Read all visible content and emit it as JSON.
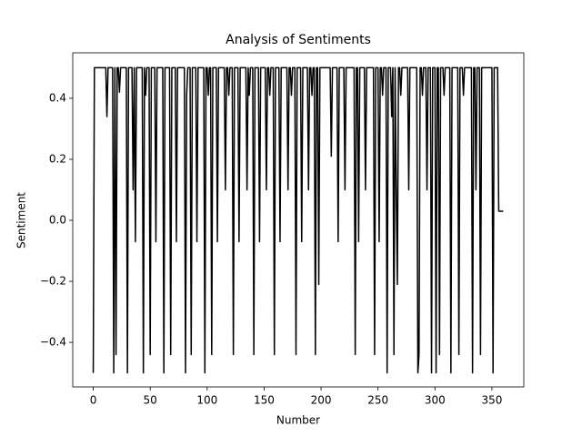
{
  "chart_data": {
    "type": "line",
    "title": "Analysis of Sentiments",
    "x_label": "Number",
    "y_label": "Sentiment",
    "xlim": [
      -18,
      378
    ],
    "ylim": [
      -0.546,
      0.549
    ],
    "xticks": [
      0,
      50,
      100,
      150,
      200,
      250,
      300,
      350
    ],
    "yticks": [
      {
        "value": -0.4,
        "label": "−0.4"
      },
      {
        "value": -0.2,
        "label": "−0.2"
      },
      {
        "value": 0,
        "label": "0.0"
      },
      0.2,
      0.4
    ],
    "grid": false,
    "x": [
      0,
      1,
      2,
      3,
      4,
      5,
      6,
      7,
      8,
      9,
      10,
      11,
      12,
      13,
      14,
      15,
      16,
      17,
      18,
      19,
      20,
      21,
      22,
      23,
      24,
      25,
      26,
      27,
      28,
      29,
      30,
      31,
      32,
      33,
      34,
      35,
      36,
      37,
      38,
      39,
      40,
      41,
      42,
      43,
      44,
      45,
      46,
      47,
      48,
      49,
      50,
      51,
      52,
      53,
      54,
      55,
      56,
      57,
      58,
      59,
      60,
      61,
      62,
      63,
      64,
      65,
      66,
      67,
      68,
      69,
      70,
      71,
      72,
      73,
      74,
      75,
      76,
      77,
      78,
      79,
      80,
      81,
      82,
      83,
      84,
      85,
      86,
      87,
      88,
      89,
      90,
      91,
      92,
      93,
      94,
      95,
      96,
      97,
      98,
      99,
      100,
      101,
      102,
      103,
      104,
      105,
      106,
      107,
      108,
      109,
      110,
      111,
      112,
      113,
      114,
      115,
      116,
      117,
      118,
      119,
      120,
      121,
      122,
      123,
      124,
      125,
      126,
      127,
      128,
      129,
      130,
      131,
      132,
      133,
      134,
      135,
      136,
      137,
      138,
      139,
      140,
      141,
      142,
      143,
      144,
      145,
      146,
      147,
      148,
      149,
      150,
      151,
      152,
      153,
      154,
      155,
      156,
      157,
      158,
      159,
      160,
      161,
      162,
      163,
      164,
      165,
      166,
      167,
      168,
      169,
      170,
      171,
      172,
      173,
      174,
      175,
      176,
      177,
      178,
      179,
      180,
      181,
      182,
      183,
      184,
      185,
      186,
      187,
      188,
      189,
      190,
      191,
      192,
      193,
      194,
      195,
      196,
      197,
      198,
      199,
      200,
      201,
      202,
      203,
      204,
      205,
      206,
      207,
      208,
      209,
      210,
      211,
      212,
      213,
      214,
      215,
      216,
      217,
      218,
      219,
      220,
      221,
      222,
      223,
      224,
      225,
      226,
      227,
      228,
      229,
      230,
      231,
      232,
      233,
      234,
      235,
      236,
      237,
      238,
      239,
      240,
      241,
      242,
      243,
      244,
      245,
      246,
      247,
      248,
      249,
      250,
      251,
      252,
      253,
      254,
      255,
      256,
      257,
      258,
      259,
      260,
      261,
      262,
      263,
      264,
      265,
      266,
      267,
      268,
      269,
      270,
      271,
      272,
      273,
      274,
      275,
      276,
      277,
      278,
      279,
      280,
      281,
      282,
      283,
      284,
      285,
      286,
      287,
      288,
      289,
      290,
      291,
      292,
      293,
      294,
      295,
      296,
      297,
      298,
      299,
      300,
      301,
      302,
      303,
      304,
      305,
      306,
      307,
      308,
      309,
      310,
      311,
      312,
      313,
      314,
      315,
      316,
      317,
      318,
      319,
      320,
      321,
      322,
      323,
      324,
      325,
      326,
      327,
      328,
      329,
      330,
      331,
      332,
      333,
      334,
      335,
      336,
      337,
      338,
      339,
      340,
      341,
      342,
      343,
      344,
      345,
      346,
      347,
      348,
      349,
      350,
      351,
      352,
      353,
      354,
      355,
      356,
      357,
      358,
      359,
      360
    ],
    "series": [
      {
        "color": "#000000",
        "values": [
          -0.5,
          0.5,
          0.5,
          0.5,
          0.5,
          0.5,
          0.5,
          0.5,
          0.5,
          0.5,
          0.5,
          0.5,
          0.34,
          0.5,
          0.5,
          0.5,
          0.5,
          0.5,
          -0.5,
          0.5,
          -0.44,
          0.5,
          0.5,
          0.42,
          0.5,
          0.5,
          0.5,
          0.5,
          0.5,
          0.5,
          -0.5,
          0.5,
          0.5,
          0.5,
          0.5,
          0.1,
          0.5,
          -0.07,
          0.5,
          0.5,
          0.5,
          0.5,
          0.5,
          0.5,
          -0.5,
          0.5,
          0.41,
          0.5,
          0.5,
          0.5,
          -0.44,
          0.5,
          0.5,
          0.5,
          0.5,
          -0.07,
          0.5,
          0.5,
          0.5,
          0.5,
          0.5,
          0.5,
          -0.5,
          0.5,
          0.5,
          0.5,
          0.5,
          0.5,
          -0.44,
          0.5,
          0.5,
          0.5,
          0.5,
          -0.07,
          0.5,
          0.5,
          0.5,
          0.5,
          0.5,
          0.5,
          0.5,
          -0.5,
          0.41,
          0.5,
          0.5,
          0.5,
          -0.44,
          0.5,
          0.5,
          0.5,
          0.5,
          -0.07,
          0.5,
          0.5,
          0.5,
          0.5,
          0.5,
          0.5,
          -0.5,
          0.5,
          0.5,
          0.41,
          0.5,
          0.5,
          -0.44,
          0.5,
          0.5,
          0.5,
          0.5,
          -0.07,
          0.5,
          0.5,
          0.5,
          0.5,
          0.5,
          0.5,
          0.1,
          0.5,
          0.5,
          0.41,
          0.5,
          0.5,
          0.5,
          -0.44,
          0.5,
          0.5,
          0.5,
          0.5,
          -0.07,
          0.5,
          0.5,
          0.5,
          0.5,
          0.5,
          0.5,
          0.1,
          0.5,
          0.41,
          0.5,
          0.5,
          0.5,
          -0.44,
          0.5,
          0.5,
          0.5,
          0.5,
          -0.07,
          0.5,
          0.5,
          0.5,
          0.5,
          0.5,
          0.1,
          0.5,
          0.5,
          0.41,
          0.5,
          0.5,
          0.5,
          -0.44,
          0.5,
          0.5,
          0.5,
          0.5,
          -0.07,
          0.5,
          0.5,
          0.5,
          0.5,
          0.5,
          0.5,
          0.1,
          0.5,
          0.5,
          0.41,
          0.5,
          0.5,
          0.5,
          -0.44,
          0.5,
          0.5,
          0.5,
          0.5,
          -0.07,
          0.5,
          0.5,
          0.5,
          0.5,
          0.5,
          0.1,
          0.5,
          0.5,
          0.41,
          0.5,
          0.5,
          -0.44,
          0.5,
          0.5,
          -0.21,
          0.5,
          0.5,
          0.5,
          0.5,
          0.5,
          0.5,
          0.5,
          0.5,
          0.5,
          0.5,
          0.21,
          0.5,
          0.5,
          0.5,
          0.5,
          0.5,
          -0.07,
          0.5,
          0.5,
          0.5,
          0.5,
          0.5,
          0.1,
          0.5,
          0.5,
          0.5,
          0.5,
          0.5,
          0.5,
          0.5,
          0.5,
          -0.44,
          0.5,
          0.5,
          -0.07,
          0.5,
          0.5,
          0.5,
          0.5,
          0.5,
          0.1,
          0.5,
          0.5,
          0.5,
          0.5,
          0.5,
          0.5,
          0.5,
          -0.44,
          0.5,
          0.5,
          0.5,
          -0.07,
          0.5,
          0.5,
          0.41,
          0.5,
          0.5,
          0.5,
          -0.5,
          0.5,
          0.5,
          0.5,
          0.34,
          0.5,
          -0.44,
          0.5,
          0.1,
          -0.21,
          0.5,
          0.5,
          0.41,
          0.5,
          0.5,
          0.5,
          0.5,
          0.5,
          0.5,
          0.1,
          0.5,
          0.5,
          0.5,
          0.5,
          0.5,
          0.5,
          0.5,
          -0.5,
          -0.44,
          0.5,
          0.5,
          0.41,
          0.5,
          0.5,
          0.5,
          0.1,
          0.5,
          0.5,
          0.5,
          -0.5,
          0.5,
          0.5,
          0.5,
          -0.5,
          0.5,
          0.5,
          -0.44,
          0.5,
          0.5,
          0.5,
          0.41,
          0.5,
          0.5,
          0.5,
          0.5,
          0.5,
          -0.5,
          0.5,
          0.5,
          0.5,
          0.5,
          0.5,
          0.5,
          -0.44,
          0.5,
          0.5,
          0.5,
          0.41,
          0.5,
          0.5,
          0.5,
          0.5,
          0.5,
          0.5,
          0.5,
          -0.5,
          0.5,
          0.5,
          0.1,
          0.5,
          0.5,
          0.5,
          -0.44,
          0.5,
          0.5,
          0.5,
          0.5,
          0.5,
          0.5,
          0.5,
          0.5,
          0.5,
          0.5,
          -0.5,
          0.5,
          0.5,
          0.5,
          0.5,
          0.03,
          0.03,
          0.03,
          0.03,
          0.03
        ]
      }
    ]
  }
}
